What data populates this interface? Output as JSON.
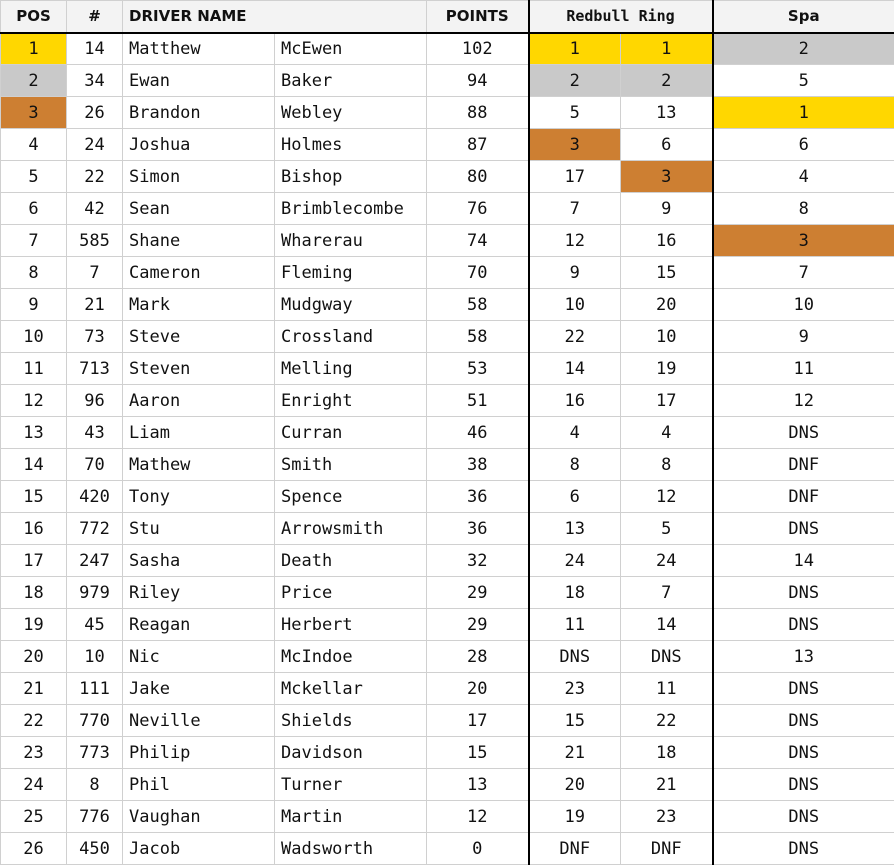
{
  "colors": {
    "gold": "#ffd700",
    "silver": "#c9c9c9",
    "bronze": "#cd7f32",
    "header_bg": "#f3f3f3"
  },
  "headers": {
    "pos": "POS",
    "num": "#",
    "driver_name": "DRIVER NAME",
    "points": "POINTS",
    "race1": "Redbull Ring",
    "race2": "Spa"
  },
  "rows": [
    {
      "pos": "1",
      "num": "14",
      "first": "Matthew",
      "last": "McEwen",
      "points": "102",
      "r1a": "1",
      "r1b": "1",
      "r2": "2"
    },
    {
      "pos": "2",
      "num": "34",
      "first": "Ewan",
      "last": "Baker",
      "points": "94",
      "r1a": "2",
      "r1b": "2",
      "r2": "5"
    },
    {
      "pos": "3",
      "num": "26",
      "first": "Brandon",
      "last": "Webley",
      "points": "88",
      "r1a": "5",
      "r1b": "13",
      "r2": "1"
    },
    {
      "pos": "4",
      "num": "24",
      "first": "Joshua",
      "last": "Holmes",
      "points": "87",
      "r1a": "3",
      "r1b": "6",
      "r2": "6"
    },
    {
      "pos": "5",
      "num": "22",
      "first": "Simon",
      "last": "Bishop",
      "points": "80",
      "r1a": "17",
      "r1b": "3",
      "r2": "4"
    },
    {
      "pos": "6",
      "num": "42",
      "first": "Sean",
      "last": "Brimblecombe",
      "points": "76",
      "r1a": "7",
      "r1b": "9",
      "r2": "8"
    },
    {
      "pos": "7",
      "num": "585",
      "first": "Shane",
      "last": "Wharerau",
      "points": "74",
      "r1a": "12",
      "r1b": "16",
      "r2": "3"
    },
    {
      "pos": "8",
      "num": "7",
      "first": "Cameron",
      "last": "Fleming",
      "points": "70",
      "r1a": "9",
      "r1b": "15",
      "r2": "7"
    },
    {
      "pos": "9",
      "num": "21",
      "first": "Mark",
      "last": "Mudgway",
      "points": "58",
      "r1a": "10",
      "r1b": "20",
      "r2": "10"
    },
    {
      "pos": "10",
      "num": "73",
      "first": "Steve",
      "last": "Crossland",
      "points": "58",
      "r1a": "22",
      "r1b": "10",
      "r2": "9"
    },
    {
      "pos": "11",
      "num": "713",
      "first": "Steven",
      "last": "Melling",
      "points": "53",
      "r1a": "14",
      "r1b": "19",
      "r2": "11"
    },
    {
      "pos": "12",
      "num": "96",
      "first": "Aaron",
      "last": "Enright",
      "points": "51",
      "r1a": "16",
      "r1b": "17",
      "r2": "12"
    },
    {
      "pos": "13",
      "num": "43",
      "first": "Liam",
      "last": "Curran",
      "points": "46",
      "r1a": "4",
      "r1b": "4",
      "r2": "DNS"
    },
    {
      "pos": "14",
      "num": "70",
      "first": "Mathew",
      "last": "Smith",
      "points": "38",
      "r1a": "8",
      "r1b": "8",
      "r2": "DNF"
    },
    {
      "pos": "15",
      "num": "420",
      "first": "Tony",
      "last": "Spence",
      "points": "36",
      "r1a": "6",
      "r1b": "12",
      "r2": "DNF"
    },
    {
      "pos": "16",
      "num": "772",
      "first": "Stu",
      "last": "Arrowsmith",
      "points": "36",
      "r1a": "13",
      "r1b": "5",
      "r2": "DNS"
    },
    {
      "pos": "17",
      "num": "247",
      "first": "Sasha",
      "last": "Death",
      "points": "32",
      "r1a": "24",
      "r1b": "24",
      "r2": "14"
    },
    {
      "pos": "18",
      "num": "979",
      "first": "Riley",
      "last": "Price",
      "points": "29",
      "r1a": "18",
      "r1b": "7",
      "r2": "DNS"
    },
    {
      "pos": "19",
      "num": "45",
      "first": "Reagan",
      "last": "Herbert",
      "points": "29",
      "r1a": "11",
      "r1b": "14",
      "r2": "DNS"
    },
    {
      "pos": "20",
      "num": "10",
      "first": "Nic",
      "last": "McIndoe",
      "points": "28",
      "r1a": "DNS",
      "r1b": "DNS",
      "r2": "13"
    },
    {
      "pos": "21",
      "num": "111",
      "first": "Jake",
      "last": "Mckellar",
      "points": "20",
      "r1a": "23",
      "r1b": "11",
      "r2": "DNS"
    },
    {
      "pos": "22",
      "num": "770",
      "first": "Neville",
      "last": "Shields",
      "points": "17",
      "r1a": "15",
      "r1b": "22",
      "r2": "DNS"
    },
    {
      "pos": "23",
      "num": "773",
      "first": "Philip",
      "last": "Davidson",
      "points": "15",
      "r1a": "21",
      "r1b": "18",
      "r2": "DNS"
    },
    {
      "pos": "24",
      "num": "8",
      "first": "Phil",
      "last": "Turner",
      "points": "13",
      "r1a": "20",
      "r1b": "21",
      "r2": "DNS"
    },
    {
      "pos": "25",
      "num": "776",
      "first": "Vaughan",
      "last": "Martin",
      "points": "12",
      "r1a": "19",
      "r1b": "23",
      "r2": "DNS"
    },
    {
      "pos": "26",
      "num": "450",
      "first": "Jacob",
      "last": "Wadsworth",
      "points": "0",
      "r1a": "DNF",
      "r1b": "DNF",
      "r2": "DNS"
    }
  ]
}
